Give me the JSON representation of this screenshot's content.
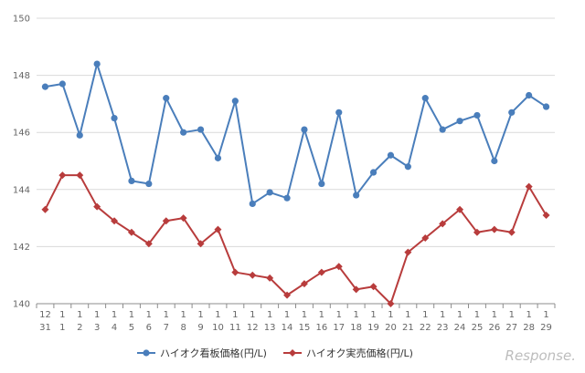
{
  "chart_data": {
    "type": "line",
    "title": "",
    "xlabel": "",
    "ylabel": "",
    "ylim": [
      140,
      150
    ],
    "yticks": [
      140,
      142,
      144,
      146,
      148,
      150
    ],
    "grid": true,
    "legend_position": "bottom",
    "categories": [
      {
        "top": "12",
        "bottom": "31"
      },
      {
        "top": "1",
        "bottom": "1"
      },
      {
        "top": "1",
        "bottom": "2"
      },
      {
        "top": "1",
        "bottom": "3"
      },
      {
        "top": "1",
        "bottom": "4"
      },
      {
        "top": "1",
        "bottom": "5"
      },
      {
        "top": "1",
        "bottom": "6"
      },
      {
        "top": "1",
        "bottom": "7"
      },
      {
        "top": "1",
        "bottom": "8"
      },
      {
        "top": "1",
        "bottom": "9"
      },
      {
        "top": "1",
        "bottom": "10"
      },
      {
        "top": "1",
        "bottom": "11"
      },
      {
        "top": "1",
        "bottom": "12"
      },
      {
        "top": "1",
        "bottom": "13"
      },
      {
        "top": "1",
        "bottom": "14"
      },
      {
        "top": "1",
        "bottom": "15"
      },
      {
        "top": "1",
        "bottom": "16"
      },
      {
        "top": "1",
        "bottom": "17"
      },
      {
        "top": "1",
        "bottom": "18"
      },
      {
        "top": "1",
        "bottom": "19"
      },
      {
        "top": "1",
        "bottom": "20"
      },
      {
        "top": "1",
        "bottom": "21"
      },
      {
        "top": "1",
        "bottom": "22"
      },
      {
        "top": "1",
        "bottom": "23"
      },
      {
        "top": "1",
        "bottom": "24"
      },
      {
        "top": "1",
        "bottom": "25"
      },
      {
        "top": "1",
        "bottom": "26"
      },
      {
        "top": "1",
        "bottom": "27"
      },
      {
        "top": "1",
        "bottom": "28"
      },
      {
        "top": "1",
        "bottom": "29"
      }
    ],
    "series": [
      {
        "name": "ハイオク看板価格(円/L)",
        "color": "#4a7ebb",
        "marker": "circle",
        "values": [
          147.6,
          147.7,
          145.9,
          148.4,
          146.5,
          144.3,
          144.2,
          147.2,
          146.0,
          146.1,
          145.1,
          147.1,
          143.5,
          143.9,
          143.7,
          146.1,
          144.2,
          146.7,
          143.8,
          144.6,
          145.2,
          144.8,
          147.2,
          146.1,
          146.4,
          146.6,
          145.0,
          146.7,
          147.3,
          146.9
        ]
      },
      {
        "name": "ハイオク実売価格(円/L)",
        "color": "#b83c3c",
        "marker": "diamond",
        "values": [
          143.3,
          144.5,
          144.5,
          143.4,
          142.9,
          142.5,
          142.1,
          142.9,
          143.0,
          142.1,
          142.6,
          141.1,
          141.0,
          140.9,
          140.3,
          140.7,
          141.1,
          141.3,
          140.5,
          140.6,
          140.0,
          141.8,
          142.3,
          142.8,
          143.3,
          142.5,
          142.6,
          142.5,
          144.1,
          143.1
        ]
      }
    ]
  },
  "watermark": "Response."
}
